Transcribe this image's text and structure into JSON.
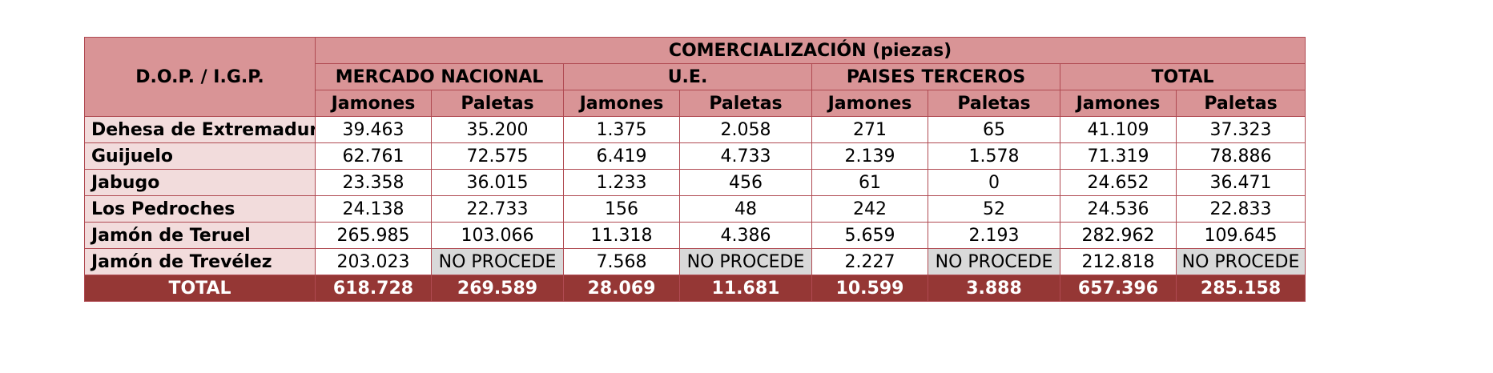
{
  "header": {
    "row_label": "D.O.P. / I.G.P.",
    "main": "COMERCIALIZACIÓN (piezas)",
    "groups": [
      "MERCADO NACIONAL",
      "U.E.",
      "PAISES TERCEROS",
      "TOTAL"
    ],
    "sub": [
      "Jamones",
      "Paletas",
      "Jamones",
      "Paletas",
      "Jamones",
      "Paletas",
      "Jamones",
      "Paletas"
    ]
  },
  "rows": [
    {
      "name": "Dehesa de Extremadura",
      "values": [
        "39.463",
        "35.200",
        "1.375",
        "2.058",
        "271",
        "65",
        "41.109",
        "37.323"
      ]
    },
    {
      "name": "Guijuelo",
      "values": [
        "62.761",
        "72.575",
        "6.419",
        "4.733",
        "2.139",
        "1.578",
        "71.319",
        "78.886"
      ]
    },
    {
      "name": "Jabugo",
      "values": [
        "23.358",
        "36.015",
        "1.233",
        "456",
        "61",
        "0",
        "24.652",
        "36.471"
      ]
    },
    {
      "name": "Los Pedroches",
      "values": [
        "24.138",
        "22.733",
        "156",
        "48",
        "242",
        "52",
        "24.536",
        "22.833"
      ]
    },
    {
      "name": "Jamón de Teruel",
      "values": [
        "265.985",
        "103.066",
        "11.318",
        "4.386",
        "5.659",
        "2.193",
        "282.962",
        "109.645"
      ]
    },
    {
      "name": "Jamón de Trevélez",
      "values": [
        "203.023",
        "NO PROCEDE",
        "7.568",
        "NO PROCEDE",
        "2.227",
        "NO PROCEDE",
        "212.818",
        "NO PROCEDE"
      ]
    }
  ],
  "total": {
    "label": "TOTAL",
    "values": [
      "618.728",
      "269.589",
      "28.069",
      "11.681",
      "10.599",
      "3.888",
      "657.396",
      "285.158"
    ]
  },
  "colors": {
    "header": "#d99496",
    "row_label": "#f2dcdc",
    "not_applicable": "#d9d9d9",
    "total": "#953735",
    "border": "#b04a52"
  }
}
